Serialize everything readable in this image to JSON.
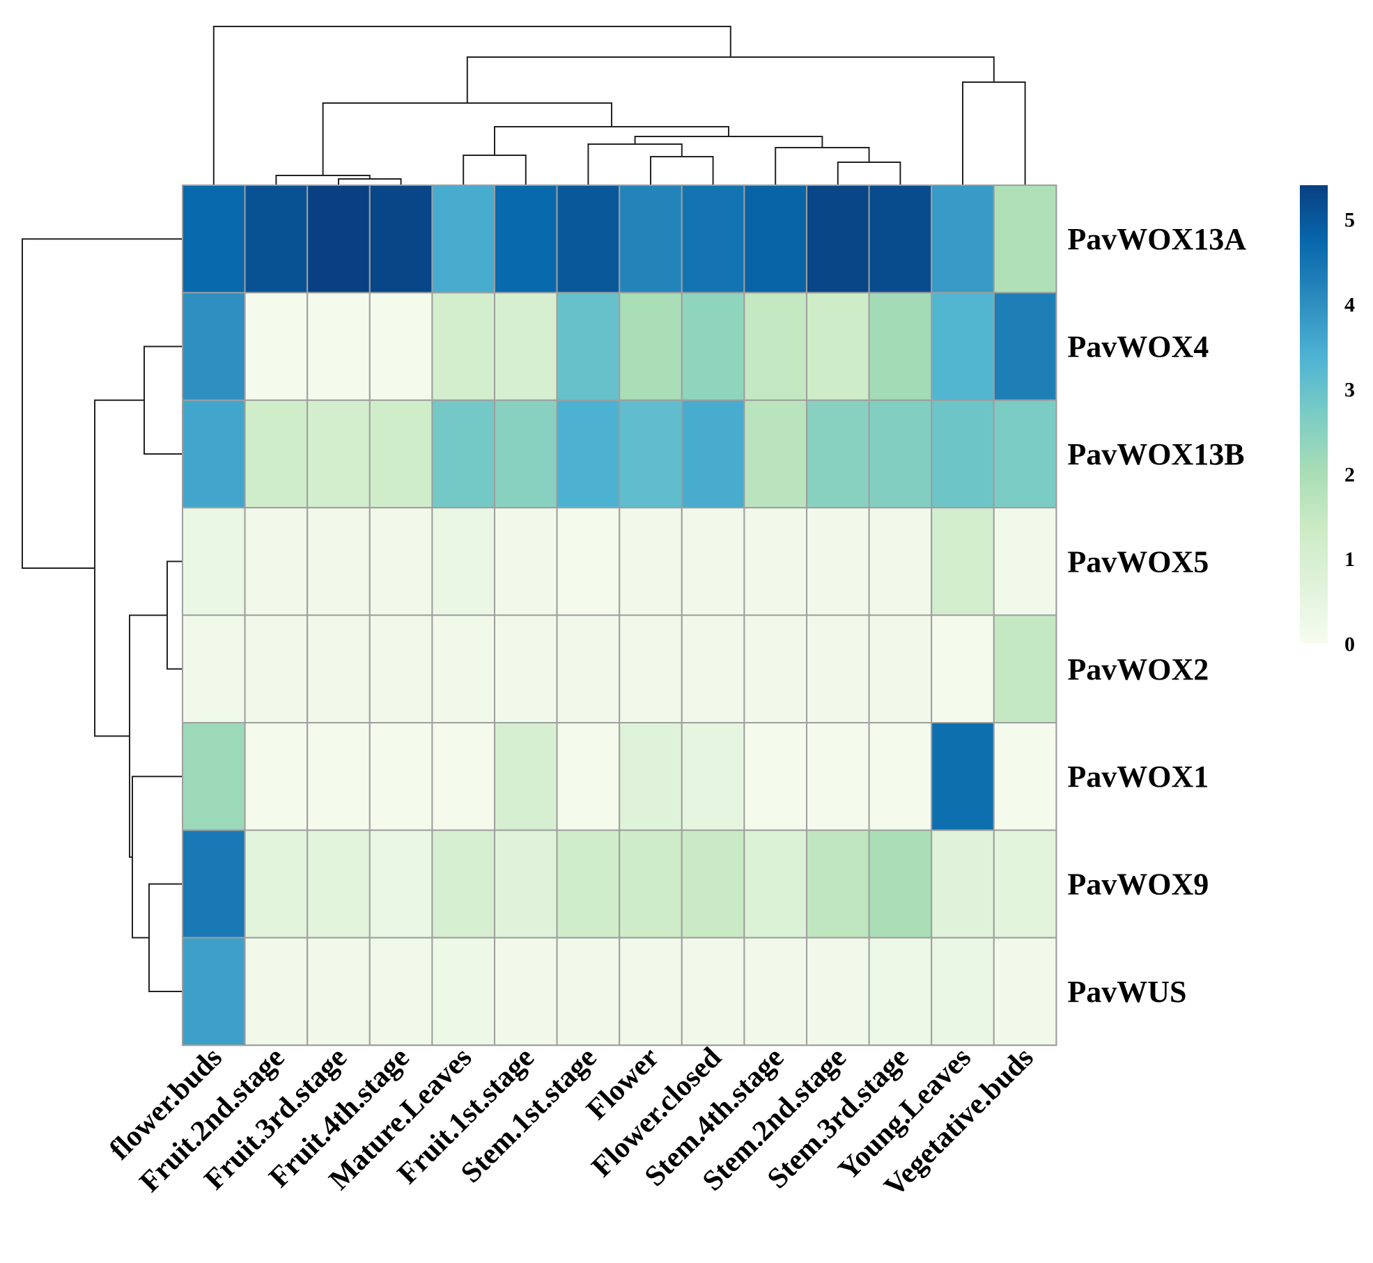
{
  "chart_data": {
    "type": "heatmap",
    "title": "",
    "xlabel": "",
    "ylabel": "",
    "columns": [
      "flower.buds",
      "Fruit.2nd.stage",
      "Fruit.3rd.stage",
      "Fruit.4th.stage",
      "Mature.Leaves",
      "Fruit.1st.stage",
      "Stem.1st.stage",
      "Flower",
      "Flower.closed",
      "Stem.4th.stage",
      "Stem.2nd.stage",
      "Stem.3rd.stage",
      "Young.Leaves",
      "Vegetative.buds"
    ],
    "rows": [
      "PavWOX13A",
      "PavWOX4",
      "PavWOX13B",
      "PavWOX5",
      "PavWOX2",
      "PavWOX1",
      "PavWOX9",
      "PavWUS"
    ],
    "values": [
      [
        4.7,
        5.1,
        5.4,
        5.3,
        3.5,
        4.7,
        5.0,
        4.2,
        4.5,
        4.8,
        5.3,
        5.2,
        3.8,
        1.9
      ],
      [
        4.0,
        0.1,
        0.1,
        0.1,
        1.1,
        1.0,
        3.0,
        2.0,
        2.4,
        1.5,
        1.3,
        2.1,
        3.3,
        4.3
      ],
      [
        3.6,
        1.2,
        1.1,
        1.2,
        2.8,
        2.5,
        3.4,
        3.1,
        3.5,
        1.7,
        2.5,
        2.6,
        2.9,
        2.7
      ],
      [
        0.4,
        0.2,
        0.2,
        0.2,
        0.4,
        0.2,
        0.1,
        0.2,
        0.2,
        0.2,
        0.2,
        0.2,
        1.1,
        0.2
      ],
      [
        0.2,
        0.2,
        0.2,
        0.2,
        0.2,
        0.2,
        0.2,
        0.2,
        0.2,
        0.2,
        0.2,
        0.2,
        0.1,
        1.5
      ],
      [
        2.2,
        0.1,
        0.1,
        0.1,
        0.1,
        1.0,
        0.1,
        0.7,
        0.5,
        0.1,
        0.1,
        0.1,
        4.6,
        0.1
      ],
      [
        4.4,
        0.6,
        0.6,
        0.4,
        1.0,
        0.7,
        1.2,
        1.3,
        1.4,
        0.8,
        1.6,
        2.0,
        0.7,
        0.6
      ],
      [
        3.7,
        0.2,
        0.2,
        0.2,
        0.3,
        0.2,
        0.2,
        0.2,
        0.2,
        0.2,
        0.2,
        0.3,
        0.4,
        0.2
      ]
    ],
    "colorscale": [
      "#f7fcf0",
      "#e0f3db",
      "#ccebc5",
      "#a8ddb5",
      "#7bccc4",
      "#4eb3d3",
      "#2b8cbe",
      "#0868ac",
      "#084081"
    ],
    "vmin": 0,
    "vmax": 5.4,
    "legend": {
      "placement": "right",
      "ticks": [
        "0",
        "1",
        "2",
        "3",
        "4",
        "5"
      ]
    }
  }
}
